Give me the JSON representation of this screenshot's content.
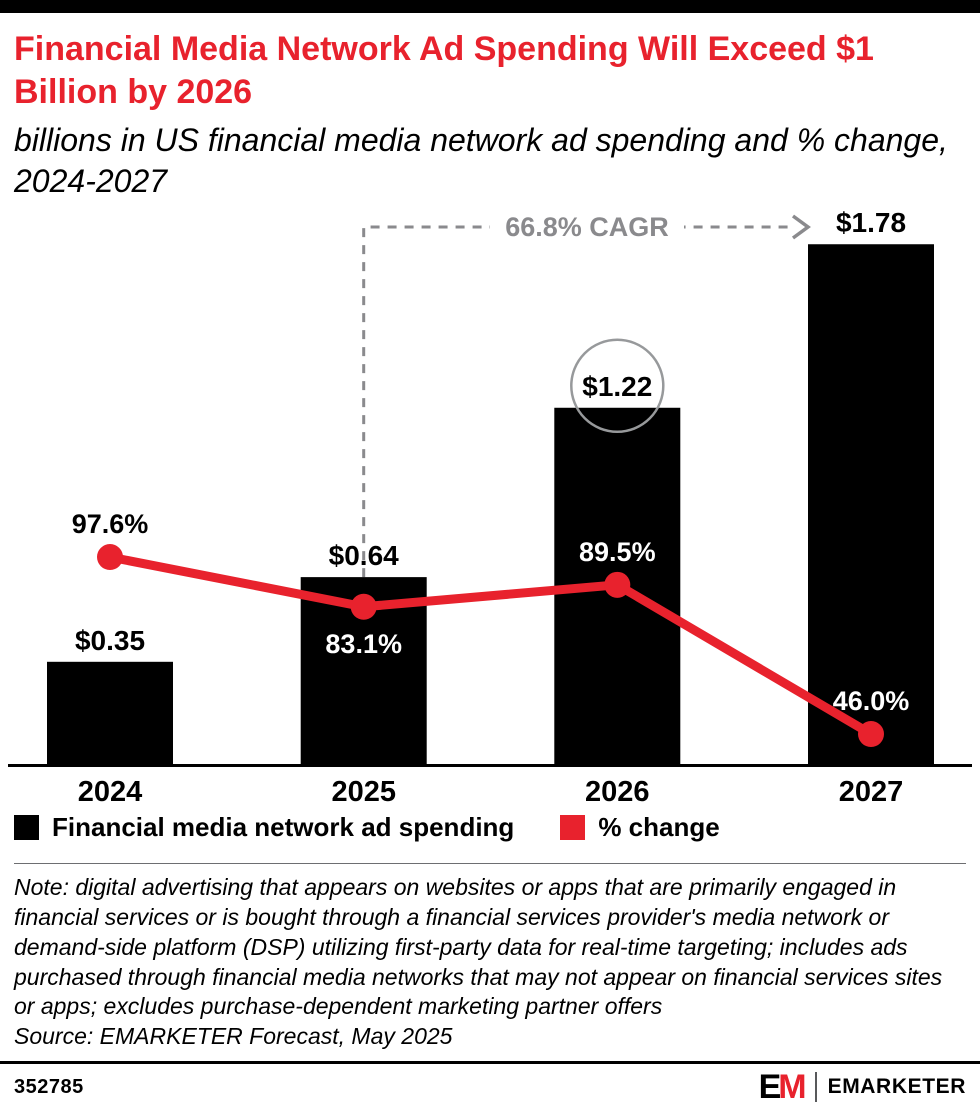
{
  "colors": {
    "accent_red": "#e8222d",
    "bar_black": "#000000",
    "annotation_gray": "#8a8a8d",
    "circle_gray": "#97999b"
  },
  "header": {
    "title": "Financial Media Network Ad Spending Will Exceed $1 Billion by 2026",
    "subtitle": "billions in US financial media network ad spending and % change, 2024-2027"
  },
  "chart_data": {
    "type": "bar+line",
    "categories": [
      "2024",
      "2025",
      "2026",
      "2027"
    ],
    "series": [
      {
        "name": "Financial media network ad spending",
        "type": "bar",
        "color": "#000000",
        "values": [
          0.35,
          0.64,
          1.22,
          1.78
        ],
        "labels": [
          "$0.35",
          "$0.64",
          "$1.22",
          "$1.78"
        ]
      },
      {
        "name": "% change",
        "type": "line",
        "color": "#e8222d",
        "values": [
          97.6,
          83.1,
          89.5,
          46.0
        ],
        "labels": [
          "97.6%",
          "83.1%",
          "89.5%",
          "46.0%"
        ],
        "label_positions": [
          "above",
          "below",
          "above",
          "above"
        ],
        "label_colors": [
          "#000000",
          "#ffffff",
          "#ffffff",
          "#ffffff"
        ]
      }
    ],
    "annotations": [
      {
        "type": "cagr-arrow",
        "text": "66.8% CAGR",
        "from_category": "2025",
        "to_category": "2027",
        "color": "#8a8a8d"
      },
      {
        "type": "circle-highlight",
        "category": "2026",
        "target": "bar-label",
        "color": "#97999b"
      }
    ],
    "axes": {
      "x_labels": [
        "2024",
        "2025",
        "2026",
        "2027"
      ],
      "bar_ylim": [
        0,
        1.9
      ],
      "y_axis_visible": false,
      "grid": false,
      "legend_position": "bottom"
    }
  },
  "legend": {
    "items": [
      {
        "label": "Financial media network ad spending",
        "color": "#000000"
      },
      {
        "label": "% change",
        "color": "#e8222d"
      }
    ]
  },
  "notes": {
    "note": "Note: digital advertising that appears on websites or apps that are primarily engaged in financial services or is bought through a financial services provider's media network or demand-side platform (DSP) utilizing first-party data for real-time targeting; includes ads purchased through financial media networks that may not appear on financial services sites or apps; excludes purchase-dependent marketing partner offers",
    "source": "Source: EMARKETER Forecast, May 2025"
  },
  "footer": {
    "chart_id": "352785",
    "logo_e": "E",
    "logo_m": "M",
    "brand": "EMARKETER"
  }
}
